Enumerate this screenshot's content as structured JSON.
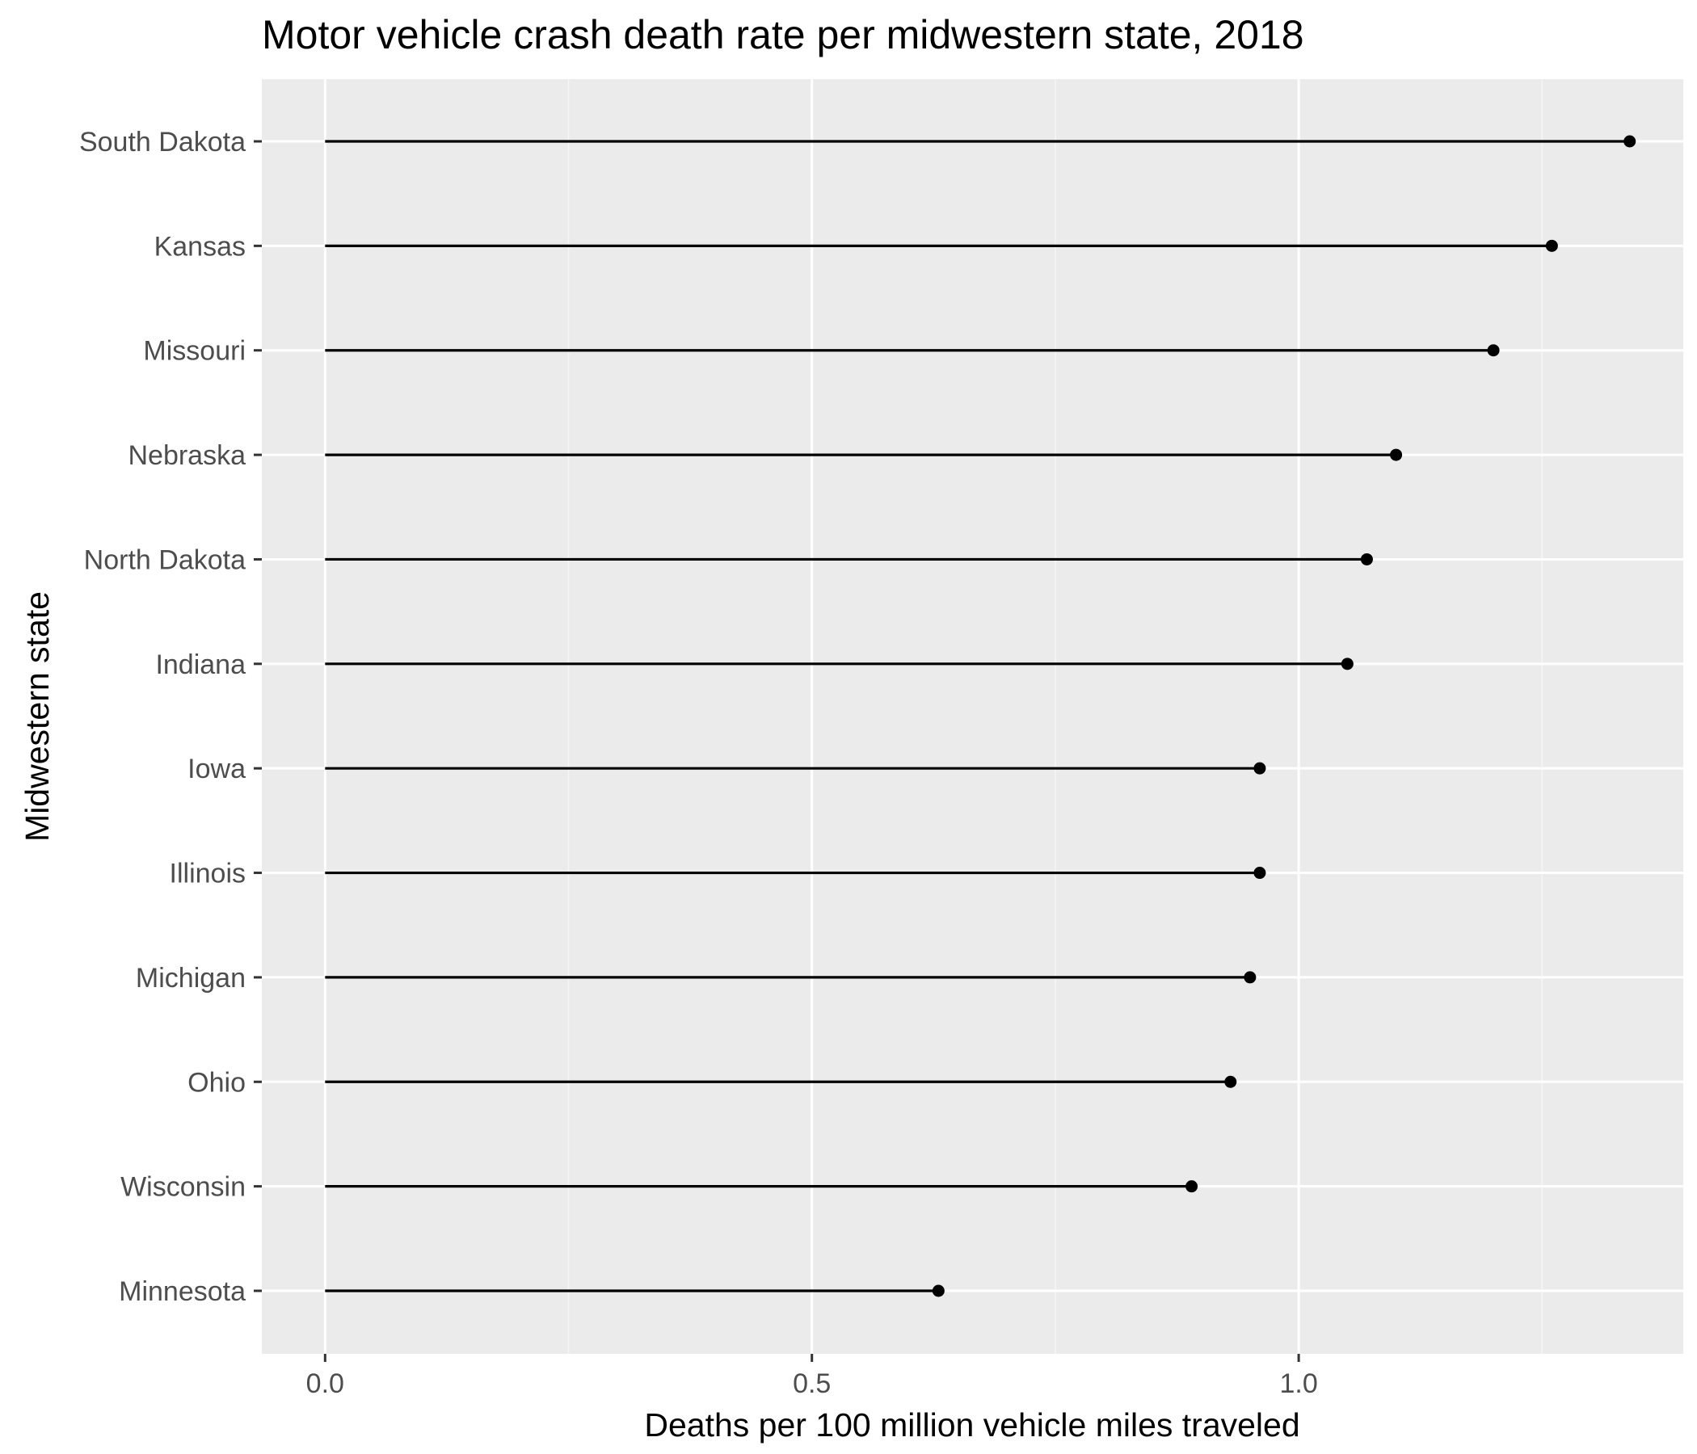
{
  "chart_data": {
    "type": "lollipop",
    "title": "Motor vehicle crash death rate per midwestern state, 2018",
    "xlabel": "Deaths per 100 million vehicle miles traveled",
    "ylabel": "Midwestern state",
    "xlim": [
      -0.065,
      1.395
    ],
    "x_ticks": [
      0.0,
      0.5,
      1.0
    ],
    "x_tick_labels": [
      "0.0",
      "0.5",
      "1.0"
    ],
    "x_minor_ticks": [
      0.25,
      0.75,
      1.25
    ],
    "grid": true,
    "categories": [
      "South Dakota",
      "Kansas",
      "Missouri",
      "Nebraska",
      "North Dakota",
      "Indiana",
      "Iowa",
      "Illinois",
      "Michigan",
      "Ohio",
      "Wisconsin",
      "Minnesota"
    ],
    "values": [
      1.34,
      1.26,
      1.2,
      1.1,
      1.07,
      1.05,
      0.96,
      0.96,
      0.95,
      0.93,
      0.89,
      0.63
    ],
    "colors": {
      "panel_background": "#ebebeb",
      "grid_major": "#ffffff",
      "grid_minor": "#f5f5f5",
      "marks": "#000000",
      "tick_label": "#4d4d4d",
      "tick_mark": "#333333"
    }
  }
}
